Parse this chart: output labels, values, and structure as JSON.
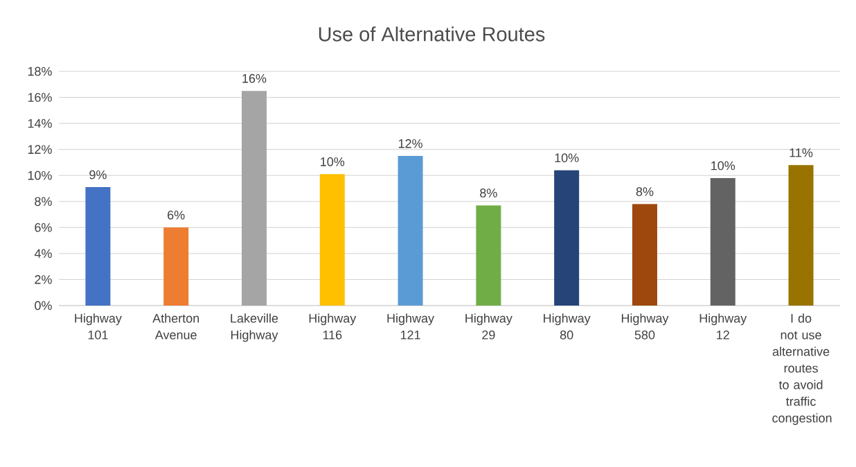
{
  "chart_data": {
    "type": "bar",
    "title": "Use of Alternative Routes",
    "categories": [
      "Highway 101",
      "Atherton Avenue",
      "Lakeville Highway",
      "Highway 116",
      "Highway 121",
      "Highway 29",
      "Highway 80",
      "Highway 580",
      "Highway 12",
      "I do not use alternative routes to avoid traffic congestion"
    ],
    "values": [
      9.1,
      6.0,
      16.5,
      10.1,
      11.5,
      7.7,
      10.4,
      7.8,
      9.8,
      10.8
    ],
    "value_labels": [
      "9%",
      "6%",
      "16%",
      "10%",
      "12%",
      "8%",
      "10%",
      "8%",
      "10%",
      "11%"
    ],
    "colors": [
      "#4472c4",
      "#ed7d31",
      "#a5a5a5",
      "#ffc000",
      "#5b9bd5",
      "#70ad47",
      "#264478",
      "#9e480e",
      "#636363",
      "#997300"
    ],
    "ylim": [
      0,
      18
    ],
    "yticks": [
      {
        "value": 0,
        "label": "0%"
      },
      {
        "value": 2,
        "label": "2%"
      },
      {
        "value": 4,
        "label": "4%"
      },
      {
        "value": 6,
        "label": "6%"
      },
      {
        "value": 8,
        "label": "8%"
      },
      {
        "value": 10,
        "label": "10%"
      },
      {
        "value": 12,
        "label": "12%"
      },
      {
        "value": 14,
        "label": "14%"
      },
      {
        "value": 16,
        "label": "16%"
      },
      {
        "value": 18,
        "label": "18%"
      }
    ],
    "grid": "y"
  }
}
